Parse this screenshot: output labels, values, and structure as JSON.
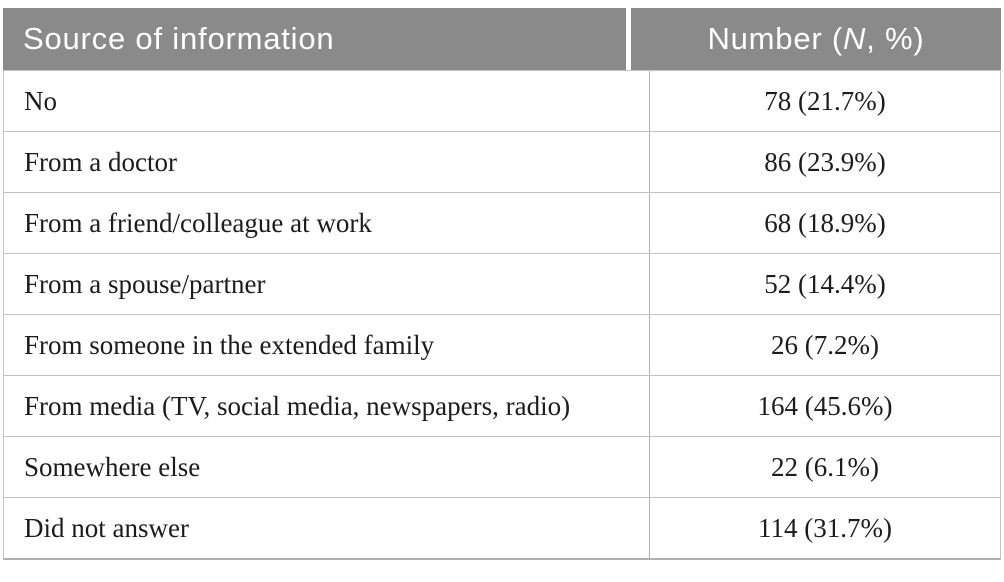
{
  "chart_data": {
    "type": "table",
    "title": "",
    "columns": [
      {
        "label": "Source of information"
      },
      {
        "label": "Number (N, %)",
        "label_prefix": "Number (",
        "label_italic": "N",
        "label_suffix": ", %)"
      }
    ],
    "rows": [
      {
        "label": "No",
        "n": 78,
        "pct": 21.7,
        "display": "78 (21.7%)"
      },
      {
        "label": "From a doctor",
        "n": 86,
        "pct": 23.9,
        "display": "86 (23.9%)"
      },
      {
        "label": "From a friend/colleague at work",
        "n": 68,
        "pct": 18.9,
        "display": "68 (18.9%)"
      },
      {
        "label": "From a spouse/partner",
        "n": 52,
        "pct": 14.4,
        "display": "52 (14.4%)"
      },
      {
        "label": "From someone in the extended family",
        "n": 26,
        "pct": 7.2,
        "display": "26 (7.2%)"
      },
      {
        "label": "From media (TV, social media, newspapers, radio)",
        "n": 164,
        "pct": 45.6,
        "display": "164 (45.6%)"
      },
      {
        "label": "Somewhere else",
        "n": 22,
        "pct": 6.1,
        "display": "22 (6.1%)"
      },
      {
        "label": "Did not answer",
        "n": 114,
        "pct": 31.7,
        "display": "114 (31.7%)"
      }
    ],
    "layout": {
      "header_alignment_col1": "left",
      "header_alignment_col2": "center",
      "value_alignment": "center",
      "grid": "horizontal-rules-and-single-column-divider"
    }
  },
  "colors": {
    "header_bg": "#8a8a8a",
    "header_text": "#ffffff",
    "body_text": "#1c1c1c",
    "border_row": "#c2c2c2",
    "border_strong": "#b0b0b0",
    "border_outer": "#c6c6c6"
  }
}
